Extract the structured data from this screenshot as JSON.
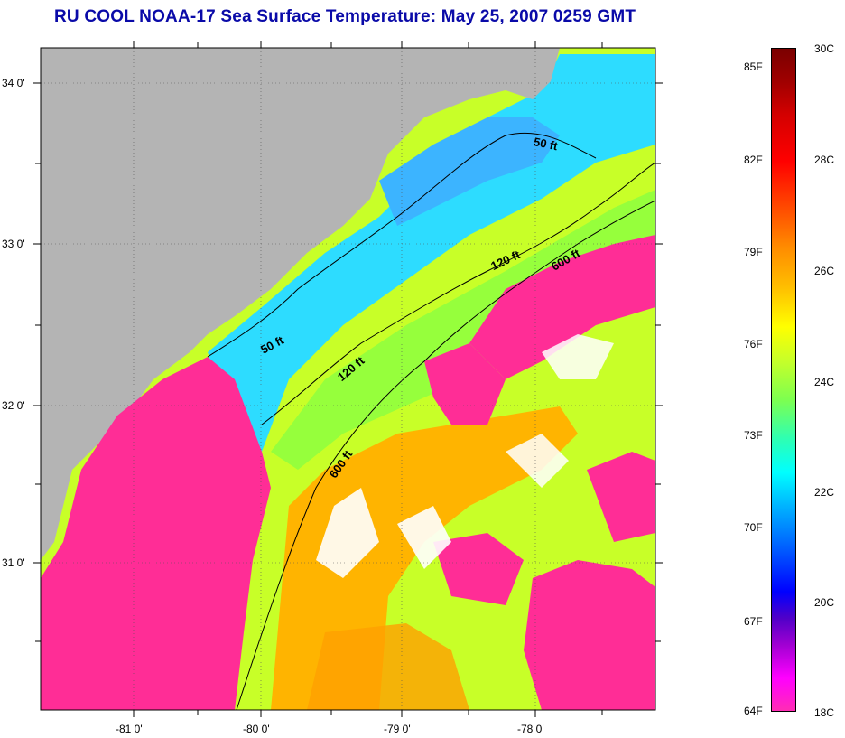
{
  "title": "RU COOL  NOAA-17  Sea Surface Temperature:  May 25, 2007 0259 GMT",
  "map": {
    "lat_labels": [
      "34 0'",
      "33 0'",
      "32 0'",
      "31 0'"
    ],
    "lon_labels": [
      "-81 0'",
      "-80 0'",
      "-79 0'",
      "-78 0'"
    ],
    "lon_range": [
      -81.6,
      -77.2
    ],
    "lat_range": [
      30.2,
      34.2
    ],
    "contours": [
      {
        "label": "50 ft"
      },
      {
        "label": "50 ft"
      },
      {
        "label": "120 ft"
      },
      {
        "label": "120 ft"
      },
      {
        "label": "600 ft"
      },
      {
        "label": "600 ft"
      }
    ],
    "colors": {
      "land": "#b4b4b4",
      "cloud": "#ffffff",
      "cold_mask": "#ff2d96",
      "frame": "#000000"
    }
  },
  "colorbar": {
    "fahrenheit_labels": [
      "85F",
      "82F",
      "79F",
      "76F",
      "73F",
      "70F",
      "67F",
      "64F"
    ],
    "celsius_labels": [
      "30C",
      "28C",
      "26C",
      "24C",
      "22C",
      "20C",
      "18C"
    ],
    "range_c": [
      18,
      30
    ]
  }
}
